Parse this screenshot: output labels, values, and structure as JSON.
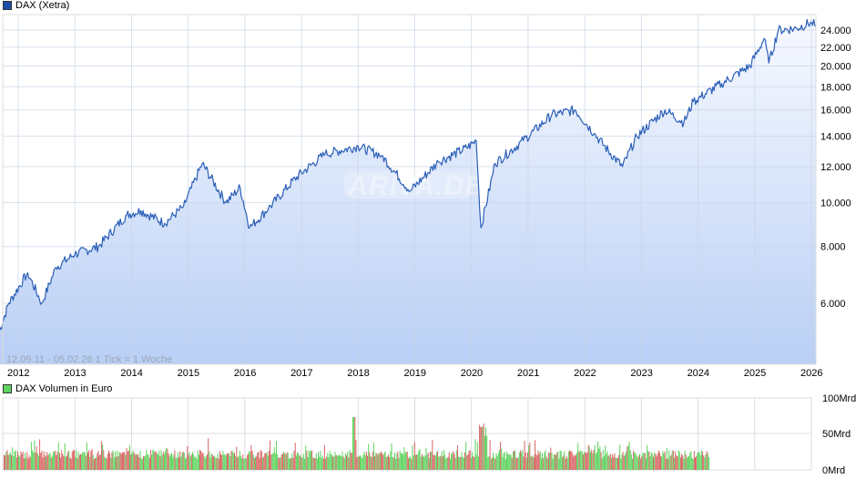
{
  "price_legend": {
    "label": "DAX (Xetra)",
    "color": "#1f4fa8"
  },
  "volume_legend": {
    "label": "DAX Volumen in Euro",
    "color": "#5ed35e"
  },
  "range_label": "12.09.11 - 05.02.26   1 Tick = 1 Woche",
  "watermark": "ARIVA.DE",
  "colors": {
    "line": "#2b5fb8",
    "area_top": "#f4f7fe",
    "area_bottom": "#b9cff5",
    "grid": "#dcdcdc",
    "vol_up": "#5ed35e",
    "vol_down": "#d96262"
  },
  "chart_data": [
    {
      "type": "line",
      "title": "DAX (Xetra)",
      "xlabel": "",
      "ylabel": "",
      "yscale": "log",
      "ylim": [
        4400,
        26000
      ],
      "yticks": [
        "6.000",
        "8.000",
        "10.000",
        "12.000",
        "14.000",
        "16.000",
        "18.000",
        "20.000",
        "22.000",
        "24.000"
      ],
      "xticks": [
        "2012",
        "2013",
        "2014",
        "2015",
        "2016",
        "2017",
        "2018",
        "2019",
        "2020",
        "2021",
        "2022",
        "2023",
        "2024",
        "2025",
        "2026"
      ],
      "grid": true,
      "legend_position": "top-left",
      "annotation": "12.09.11 - 05.02.26   1 Tick = 1 Woche",
      "x": [
        "2011-09",
        "2011-11",
        "2012-03",
        "2012-06",
        "2012-09",
        "2013-01",
        "2013-06",
        "2013-12",
        "2014-03",
        "2014-08",
        "2014-12",
        "2015-04",
        "2015-09",
        "2015-12",
        "2016-02",
        "2016-06",
        "2016-12",
        "2017-06",
        "2018-01",
        "2018-06",
        "2018-12",
        "2019-06",
        "2019-12",
        "2020-02",
        "2020-03",
        "2020-06",
        "2020-12",
        "2021-06",
        "2021-11",
        "2022-03",
        "2022-06",
        "2022-09",
        "2022-12",
        "2023-06",
        "2023-10",
        "2023-12",
        "2024-06",
        "2024-12",
        "2025-03",
        "2025-04",
        "2025-06",
        "2025-10",
        "2026-01",
        "2026-02"
      ],
      "series": [
        {
          "name": "DAX (Xetra)",
          "values": [
            5200,
            6000,
            7000,
            6000,
            7200,
            7700,
            8000,
            9400,
            9600,
            9000,
            9800,
            12200,
            10000,
            10800,
            8800,
            9700,
            11400,
            12800,
            13300,
            12700,
            10600,
            12300,
            13200,
            13700,
            8800,
            12200,
            13700,
            15600,
            16000,
            14200,
            13000,
            12000,
            14000,
            16000,
            15000,
            16700,
            18300,
            20000,
            23000,
            20300,
            24000,
            24200,
            25000,
            24400
          ]
        }
      ]
    },
    {
      "type": "bar",
      "title": "DAX Volumen in Euro",
      "ylabel": "",
      "ylim": [
        0,
        100
      ],
      "yticks": [
        "0Mrd",
        "50Mrd",
        "100Mrd"
      ],
      "unit": "Mrd EUR",
      "note": "weekly volume bars, green = up week, red = down week; typically 15-30 Mrd, peaks ~60 Mrd in 2018 and ~55 Mrd in 2020"
    }
  ]
}
